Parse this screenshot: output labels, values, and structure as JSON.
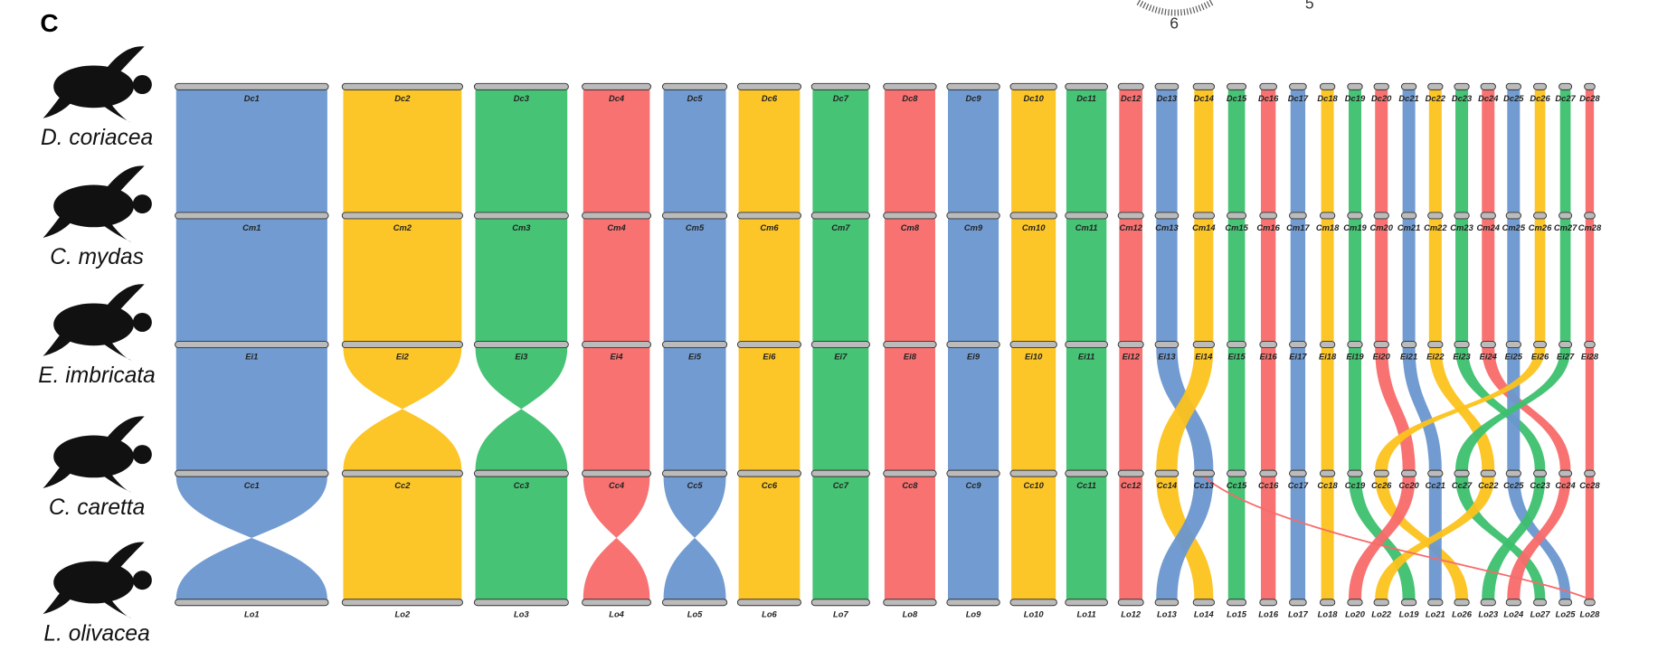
{
  "panel_label": "C",
  "species": [
    "D. coriacea",
    "C. mydas",
    "E. imbricata",
    "C. caretta",
    "L. olivacea"
  ],
  "rows": [
    [
      "Dc1",
      "Dc2",
      "Dc3",
      "Dc4",
      "Dc5",
      "Dc6",
      "Dc7",
      "Dc8",
      "Dc9",
      "Dc10",
      "Dc11",
      "Dc12",
      "Dc13",
      "Dc14",
      "Dc15",
      "Dc16",
      "Dc17",
      "Dc18",
      "Dc19",
      "Dc20",
      "Dc21",
      "Dc22",
      "Dc23",
      "Dc24",
      "Dc25",
      "Dc26",
      "Dc27",
      "Dc28"
    ],
    [
      "Cm1",
      "Cm2",
      "Cm3",
      "Cm4",
      "Cm5",
      "Cm6",
      "Cm7",
      "Cm8",
      "Cm9",
      "Cm10",
      "Cm11",
      "Cm12",
      "Cm13",
      "Cm14",
      "Cm15",
      "Cm16",
      "Cm17",
      "Cm18",
      "Cm19",
      "Cm20",
      "Cm21",
      "Cm22",
      "Cm23",
      "Cm24",
      "Cm25",
      "Cm26",
      "Cm27",
      "Cm28"
    ],
    [
      "Ei1",
      "Ei2",
      "Ei3",
      "Ei4",
      "Ei5",
      "Ei6",
      "Ei7",
      "Ei8",
      "Ei9",
      "Ei10",
      "Ei11",
      "Ei12",
      "Ei13",
      "Ei14",
      "Ei15",
      "Ei16",
      "Ei17",
      "Ei18",
      "Ei19",
      "Ei20",
      "Ei21",
      "Ei22",
      "Ei23",
      "Ei24",
      "Ei25",
      "Ei26",
      "Ei27",
      "Ei28"
    ],
    [
      "Cc1",
      "Cc2",
      "Cc3",
      "Cc4",
      "Cc5",
      "Cc6",
      "Cc7",
      "Cc8",
      "Cc9",
      "Cc10",
      "Cc11",
      "Cc12",
      "Cc14",
      "Cc13",
      "Cc15",
      "Cc16",
      "Cc17",
      "Cc18",
      "Cc19",
      "Cc26",
      "Cc20",
      "Cc21",
      "Cc27",
      "Cc22",
      "Cc25",
      "Cc23",
      "Cc24",
      "Cc28"
    ],
    [
      "Lo1",
      "Lo2",
      "Lo3",
      "Lo4",
      "Lo5",
      "Lo6",
      "Lo7",
      "Lo8",
      "Lo9",
      "Lo10",
      "Lo11",
      "Lo12",
      "Lo13",
      "Lo14",
      "Lo15",
      "Lo16",
      "Lo17",
      "Lo18",
      "Lo20",
      "Lo22",
      "Lo19",
      "Lo21",
      "Lo26",
      "Lo23",
      "Lo24",
      "Lo27",
      "Lo25",
      "Lo28"
    ]
  ],
  "inset_labels": [
    "6",
    "5"
  ]
}
